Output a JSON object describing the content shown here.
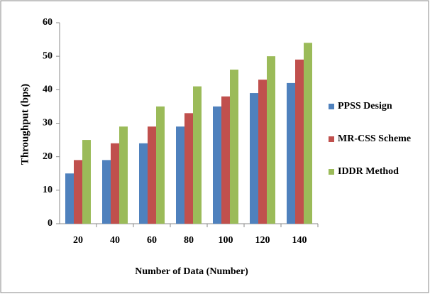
{
  "chart_data": {
    "type": "bar",
    "x_label": "Number of Data (Number)",
    "y_label": "Throughput (bps)",
    "categories": [
      "20",
      "40",
      "60",
      "80",
      "100",
      "120",
      "140"
    ],
    "series": [
      {
        "name": "PPSS Design",
        "color": "#4f81bd",
        "values": [
          15,
          19,
          24,
          29,
          35,
          39,
          42
        ]
      },
      {
        "name": "MR-CSS Scheme",
        "color": "#c0504d",
        "values": [
          19,
          24,
          29,
          33,
          38,
          43,
          49
        ]
      },
      {
        "name": "IDDR Method",
        "color": "#9bbb59",
        "values": [
          25,
          29,
          35,
          41,
          46,
          50,
          54
        ]
      }
    ],
    "ylim": [
      0,
      60
    ],
    "yticks": [
      0,
      10,
      20,
      30,
      40,
      50,
      60
    ],
    "legend": "right"
  }
}
